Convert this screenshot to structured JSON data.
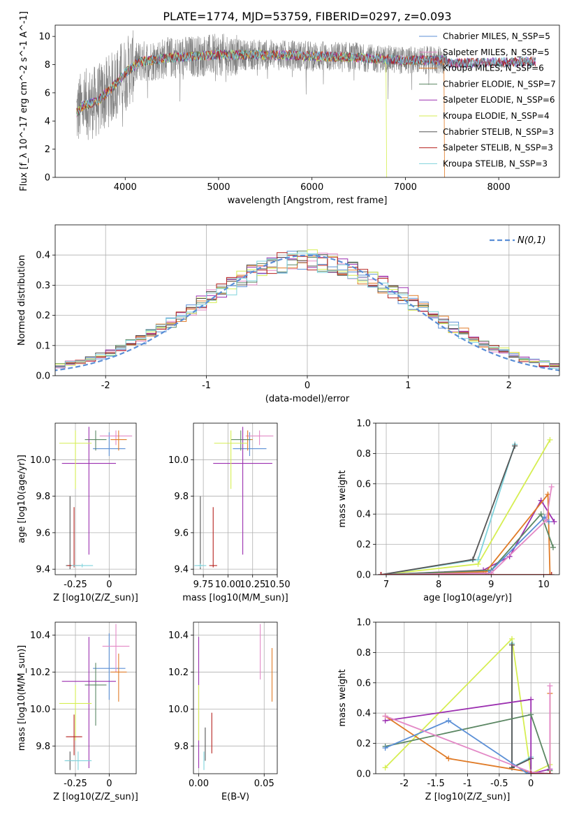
{
  "figure_title": "PLATE=1774, MJD=53759, FIBERID=0297, z=0.093",
  "chart_data": [
    {
      "id": "spectrum",
      "type": "line",
      "title": "PLATE=1774, MJD=53759, FIBERID=0297, z=0.093",
      "xlabel": "wavelength [Angstrom, rest frame]",
      "ylabel": "Flux [f_λ 10^-17 erg cm^-2 s^-1 A^-1]",
      "xlim": [
        3250,
        8650
      ],
      "ylim": [
        0,
        10.8
      ],
      "xticks": [
        4000,
        5000,
        6000,
        7000,
        8000
      ],
      "yticks": [
        0,
        2,
        4,
        6,
        8,
        10
      ],
      "grid": false,
      "legend_position": "top-right",
      "data_range": [
        3480,
        7440
      ],
      "continuum": [
        [
          3480,
          4.6
        ],
        [
          3550,
          5.1
        ],
        [
          3700,
          5.4
        ],
        [
          3850,
          6.3
        ],
        [
          4000,
          7.4
        ],
        [
          4150,
          8.2
        ],
        [
          4500,
          8.5
        ],
        [
          5000,
          8.7
        ],
        [
          5500,
          8.7
        ],
        [
          6000,
          8.6
        ],
        [
          6500,
          8.5
        ],
        [
          7000,
          8.3
        ],
        [
          7440,
          8.3
        ]
      ],
      "model_extent": [
        3480,
        8400
      ],
      "series": [
        {
          "name": "Chabrier MILES, N_SSP=5",
          "color": "#5b8fd6"
        },
        {
          "name": "Salpeter MILES, N_SSP=5",
          "color": "#e389c6"
        },
        {
          "name": "Kroupa MILES, N_SSP=6",
          "color": "#e07b27"
        },
        {
          "name": "Chabrier ELODIE, N_SSP=7",
          "color": "#5b8763"
        },
        {
          "name": "Salpeter ELODIE, N_SSP=6",
          "color": "#9b2fb0"
        },
        {
          "name": "Kroupa ELODIE, N_SSP=4",
          "color": "#d6ee52"
        },
        {
          "name": "Chabrier STELIB, N_SSP=3",
          "color": "#555555"
        },
        {
          "name": "Salpeter STELIB, N_SSP=3",
          "color": "#b5211d"
        },
        {
          "name": "Kroupa STELIB, N_SSP=3",
          "color": "#7fd3dc"
        }
      ]
    },
    {
      "id": "residuals",
      "type": "histogram",
      "xlabel": "(data-model)/error",
      "ylabel": "Normed distribution",
      "xlim": [
        -2.5,
        2.5
      ],
      "ylim": [
        0,
        0.5
      ],
      "xticks": [
        -2,
        -1,
        0,
        1,
        2
      ],
      "yticks": [
        0.0,
        0.1,
        0.2,
        0.3,
        0.4
      ],
      "grid": true,
      "bin_width": 0.1,
      "legend_position": "top-right",
      "legend_label": "N(0,1)",
      "reference_curve": {
        "mean": 0,
        "sigma": 1,
        "color": "#5b8fd6"
      },
      "series_colors": [
        "#5b8fd6",
        "#e389c6",
        "#e07b27",
        "#5b8763",
        "#9b2fb0",
        "#d6ee52",
        "#555555",
        "#b5211d",
        "#7fd3dc"
      ]
    },
    {
      "id": "age_vs_Z",
      "type": "errorbar",
      "xlabel": "Z [log10(Z/Z_sun)]",
      "ylabel": "age [log10(age/yr)]",
      "xlim": [
        -0.4,
        0.2
      ],
      "ylim": [
        9.37,
        10.2
      ],
      "xticks": [
        -0.25,
        0.0
      ],
      "yticks": [
        9.4,
        9.6,
        9.8,
        10.0
      ],
      "grid": true,
      "points": [
        {
          "color": "#5b8fd6",
          "x": 0.0,
          "xerr": [
            0.12,
            0.12
          ],
          "y": 10.06,
          "yerr": [
            0.04,
            0.09
          ]
        },
        {
          "color": "#e389c6",
          "x": 0.05,
          "xerr": [
            0.12,
            0.12
          ],
          "y": 10.13,
          "yerr": [
            0.05,
            0.03
          ]
        },
        {
          "color": "#e07b27",
          "x": 0.07,
          "xerr": [
            0.06,
            0.06
          ],
          "y": 10.11,
          "yerr": [
            0.06,
            0.05
          ]
        },
        {
          "color": "#5b8763",
          "x": -0.1,
          "xerr": [
            0.08,
            0.08
          ],
          "y": 10.11,
          "yerr": [
            0.06,
            0.05
          ]
        },
        {
          "color": "#9b2fb0",
          "x": -0.15,
          "xerr": [
            0.2,
            0.2
          ],
          "y": 9.98,
          "yerr": [
            0.5,
            0.2
          ]
        },
        {
          "color": "#d6ee52",
          "x": -0.25,
          "xerr": [
            0.12,
            0.12
          ],
          "y": 10.09,
          "yerr": [
            0.25,
            0.07
          ]
        },
        {
          "color": "#555555",
          "x": -0.29,
          "xerr": [
            0.03,
            0.03
          ],
          "y": 9.42,
          "yerr": [
            0.02,
            0.38
          ]
        },
        {
          "color": "#b5211d",
          "x": -0.26,
          "xerr": [
            0.05,
            0.05
          ],
          "y": 9.42,
          "yerr": [
            0.01,
            0.32
          ]
        },
        {
          "color": "#7fd3dc",
          "x": -0.2,
          "xerr": [
            0.08,
            0.08
          ],
          "y": 9.42,
          "yerr": [
            0.01,
            0.01
          ]
        }
      ]
    },
    {
      "id": "age_vs_mass",
      "type": "errorbar",
      "xlabel": "mass [log10(M/M_sun)]",
      "ylabel": "",
      "xlim": [
        9.65,
        10.5
      ],
      "ylim": [
        9.37,
        10.2
      ],
      "xticks": [
        9.75,
        10.0,
        10.25,
        10.5
      ],
      "xticklabels": [
        "9.75",
        "10.00",
        "10.25",
        "10.50"
      ],
      "yticks": [
        9.4,
        9.6,
        9.8,
        10.0
      ],
      "grid": true,
      "points": [
        {
          "color": "#5b8fd6",
          "x": 10.22,
          "xerr": [
            0.17,
            0.17
          ],
          "y": 10.06,
          "yerr": [
            0.04,
            0.09
          ]
        },
        {
          "color": "#e389c6",
          "x": 10.32,
          "xerr": [
            0.14,
            0.14
          ],
          "y": 10.13,
          "yerr": [
            0.05,
            0.03
          ]
        },
        {
          "color": "#e07b27",
          "x": 10.2,
          "xerr": [
            0.05,
            0.05
          ],
          "y": 10.11,
          "yerr": [
            0.06,
            0.05
          ]
        },
        {
          "color": "#5b8763",
          "x": 10.13,
          "xerr": [
            0.1,
            0.1
          ],
          "y": 10.11,
          "yerr": [
            0.06,
            0.05
          ]
        },
        {
          "color": "#9b2fb0",
          "x": 10.15,
          "xerr": [
            0.3,
            0.3
          ],
          "y": 9.98,
          "yerr": [
            0.5,
            0.2
          ]
        },
        {
          "color": "#d6ee52",
          "x": 10.03,
          "xerr": [
            0.17,
            0.17
          ],
          "y": 10.09,
          "yerr": [
            0.25,
            0.07
          ]
        },
        {
          "color": "#555555",
          "x": 9.72,
          "xerr": [
            0.02,
            0.02
          ],
          "y": 9.42,
          "yerr": [
            0.02,
            0.38
          ]
        },
        {
          "color": "#b5211d",
          "x": 9.85,
          "xerr": [
            0.04,
            0.04
          ],
          "y": 9.42,
          "yerr": [
            0.01,
            0.32
          ]
        },
        {
          "color": "#7fd3dc",
          "x": 9.72,
          "xerr": [
            0.06,
            0.06
          ],
          "y": 9.42,
          "yerr": [
            0.01,
            0.01
          ]
        }
      ]
    },
    {
      "id": "weight_vs_age",
      "type": "line",
      "xlabel": "age [log10(age/yr)]",
      "ylabel": "mass weight",
      "xlim": [
        6.8,
        10.3
      ],
      "ylim": [
        0,
        1
      ],
      "xticks": [
        7,
        8,
        9,
        10
      ],
      "yticks": [
        0.0,
        0.2,
        0.4,
        0.6,
        0.8,
        1.0
      ],
      "grid": true,
      "series": [
        {
          "color": "#d6ee52",
          "x": [
            6.9,
            8.75,
            10.12
          ],
          "y": [
            0.0,
            0.07,
            0.89
          ]
        },
        {
          "color": "#7fd3dc",
          "x": [
            6.9,
            8.75,
            9.45
          ],
          "y": [
            0.0,
            0.1,
            0.86
          ]
        },
        {
          "color": "#555555",
          "x": [
            6.9,
            8.65,
            9.45
          ],
          "y": [
            0.0,
            0.1,
            0.85
          ]
        },
        {
          "color": "#9b2fb0",
          "x": [
            6.9,
            8.85,
            9.35,
            9.95,
            10.2
          ],
          "y": [
            0.0,
            0.03,
            0.12,
            0.49,
            0.35
          ]
        },
        {
          "color": "#e07b27",
          "x": [
            6.9,
            8.9,
            10.08,
            10.12
          ],
          "y": [
            0.0,
            0.02,
            0.53,
            0.0
          ]
        },
        {
          "color": "#5b8763",
          "x": [
            6.9,
            9.0,
            9.95,
            10.18
          ],
          "y": [
            0.0,
            0.03,
            0.4,
            0.18
          ]
        },
        {
          "color": "#5b8fd6",
          "x": [
            6.9,
            8.95,
            10.02,
            10.1
          ],
          "y": [
            0.0,
            0.01,
            0.38,
            0.35
          ]
        },
        {
          "color": "#e389c6",
          "x": [
            6.9,
            9.0,
            10.05,
            10.15
          ],
          "y": [
            0.0,
            0.01,
            0.36,
            0.58
          ]
        },
        {
          "color": "#b5211d",
          "x": [
            6.9,
            10.15
          ],
          "y": [
            0.0,
            0.0
          ]
        }
      ]
    },
    {
      "id": "mass_vs_Z",
      "type": "errorbar",
      "xlabel": "Z [log10(Z/Z_sun)]",
      "ylabel": "mass [log10(M/M_sun)]",
      "xlim": [
        -0.4,
        0.2
      ],
      "ylim": [
        9.65,
        10.47
      ],
      "xticks": [
        -0.25,
        0.0
      ],
      "yticks": [
        9.8,
        10.0,
        10.2,
        10.4
      ],
      "grid": true,
      "points": [
        {
          "color": "#5b8fd6",
          "x": 0.0,
          "xerr": [
            0.12,
            0.12
          ],
          "y": 10.22,
          "yerr": [
            0.17,
            0.19
          ]
        },
        {
          "color": "#e389c6",
          "x": 0.05,
          "xerr": [
            0.1,
            0.1
          ],
          "y": 10.34,
          "yerr": [
            0.14,
            0.12
          ]
        },
        {
          "color": "#e07b27",
          "x": 0.07,
          "xerr": [
            0.06,
            0.06
          ],
          "y": 10.2,
          "yerr": [
            0.16,
            0.1
          ]
        },
        {
          "color": "#5b8763",
          "x": -0.1,
          "xerr": [
            0.08,
            0.08
          ],
          "y": 10.13,
          "yerr": [
            0.22,
            0.12
          ]
        },
        {
          "color": "#9b2fb0",
          "x": -0.15,
          "xerr": [
            0.2,
            0.2
          ],
          "y": 10.15,
          "yerr": [
            0.47,
            0.24
          ]
        },
        {
          "color": "#d6ee52",
          "x": -0.25,
          "xerr": [
            0.12,
            0.12
          ],
          "y": 10.03,
          "yerr": [
            0.2,
            0.1
          ]
        },
        {
          "color": "#555555",
          "x": -0.29,
          "xerr": [
            0.03,
            0.03
          ],
          "y": 9.72,
          "yerr": [
            0.05,
            0.05
          ]
        },
        {
          "color": "#b5211d",
          "x": -0.26,
          "xerr": [
            0.06,
            0.06
          ],
          "y": 9.85,
          "yerr": [
            0.1,
            0.12
          ]
        },
        {
          "color": "#7fd3dc",
          "x": -0.23,
          "xerr": [
            0.1,
            0.1
          ],
          "y": 9.72,
          "yerr": [
            0.05,
            0.05
          ]
        }
      ]
    },
    {
      "id": "mass_vs_ebv",
      "type": "errorbar",
      "xlabel": "E(B-V)",
      "ylabel": "",
      "xlim": [
        -0.004,
        0.06
      ],
      "ylim": [
        9.65,
        10.47
      ],
      "xticks": [
        0.0,
        0.05
      ],
      "xticklabels": [
        "0.00",
        "0.05"
      ],
      "yticks": [
        9.8,
        10.0,
        10.2,
        10.4
      ],
      "grid": true,
      "points": [
        {
          "color": "#9b2fb0",
          "x": 0.0,
          "y": 10.15,
          "yerr": [
            0.47,
            0.24
          ]
        },
        {
          "color": "#d6ee52",
          "x": 0.0,
          "y": 10.03,
          "yerr": [
            0.2,
            0.1
          ]
        },
        {
          "color": "#555555",
          "x": 0.005,
          "y": 9.81,
          "yerr": [
            0.09,
            0.09
          ]
        },
        {
          "color": "#7fd3dc",
          "x": 0.004,
          "y": 9.72,
          "yerr": [
            0.05,
            0.05
          ]
        },
        {
          "color": "#b5211d",
          "x": 0.01,
          "y": 9.88,
          "yerr": [
            0.12,
            0.1
          ]
        },
        {
          "color": "#e389c6",
          "x": 0.047,
          "y": 10.31,
          "yerr": [
            0.15,
            0.15
          ]
        },
        {
          "color": "#e07b27",
          "x": 0.056,
          "y": 10.18,
          "yerr": [
            0.14,
            0.15
          ]
        }
      ]
    },
    {
      "id": "weight_vs_Z",
      "type": "line",
      "xlabel": "Z [log10(Z/Z_sun)]",
      "ylabel": "mass weight",
      "xlim": [
        -2.45,
        0.45
      ],
      "ylim": [
        0,
        1
      ],
      "xticks": [
        -2.0,
        -1.5,
        -1.0,
        -0.5,
        0.0
      ],
      "yticks": [
        0.0,
        0.2,
        0.4,
        0.6,
        0.8,
        1.0
      ],
      "grid": true,
      "series": [
        {
          "color": "#d6ee52",
          "x": [
            -2.3,
            -0.3,
            0.0,
            0.3
          ],
          "y": [
            0.04,
            0.89,
            0.0,
            0.06
          ]
        },
        {
          "color": "#7fd3dc",
          "x": [
            -0.3,
            -0.3,
            0.0,
            0.0
          ],
          "y": [
            0.86,
            0.04,
            0.11,
            0.0
          ]
        },
        {
          "color": "#555555",
          "x": [
            -0.3,
            -0.3,
            0.0,
            0.0
          ],
          "y": [
            0.85,
            0.04,
            0.1,
            0.0
          ]
        },
        {
          "color": "#9b2fb0",
          "x": [
            -2.3,
            0.0,
            0.0,
            0.3,
            0.3
          ],
          "y": [
            0.35,
            0.49,
            0.0,
            0.03,
            0.0
          ]
        },
        {
          "color": "#e07b27",
          "x": [
            -2.3,
            -1.3,
            0.0,
            0.3,
            0.3
          ],
          "y": [
            0.38,
            0.1,
            0.01,
            0.0,
            0.53
          ]
        },
        {
          "color": "#5b8763",
          "x": [
            -2.3,
            0.0,
            0.3
          ],
          "y": [
            0.18,
            0.39,
            0.02
          ]
        },
        {
          "color": "#5b8fd6",
          "x": [
            -2.3,
            -1.3,
            -0.05,
            0.0,
            0.3
          ],
          "y": [
            0.17,
            0.35,
            0.0,
            0.01,
            0.0
          ]
        },
        {
          "color": "#e389c6",
          "x": [
            -2.3,
            0.0,
            0.3,
            0.3
          ],
          "y": [
            0.38,
            0.01,
            0.0,
            0.58
          ]
        },
        {
          "color": "#b5211d",
          "x": [
            0.0,
            0.3
          ],
          "y": [
            0.0,
            0.0
          ]
        }
      ]
    }
  ]
}
